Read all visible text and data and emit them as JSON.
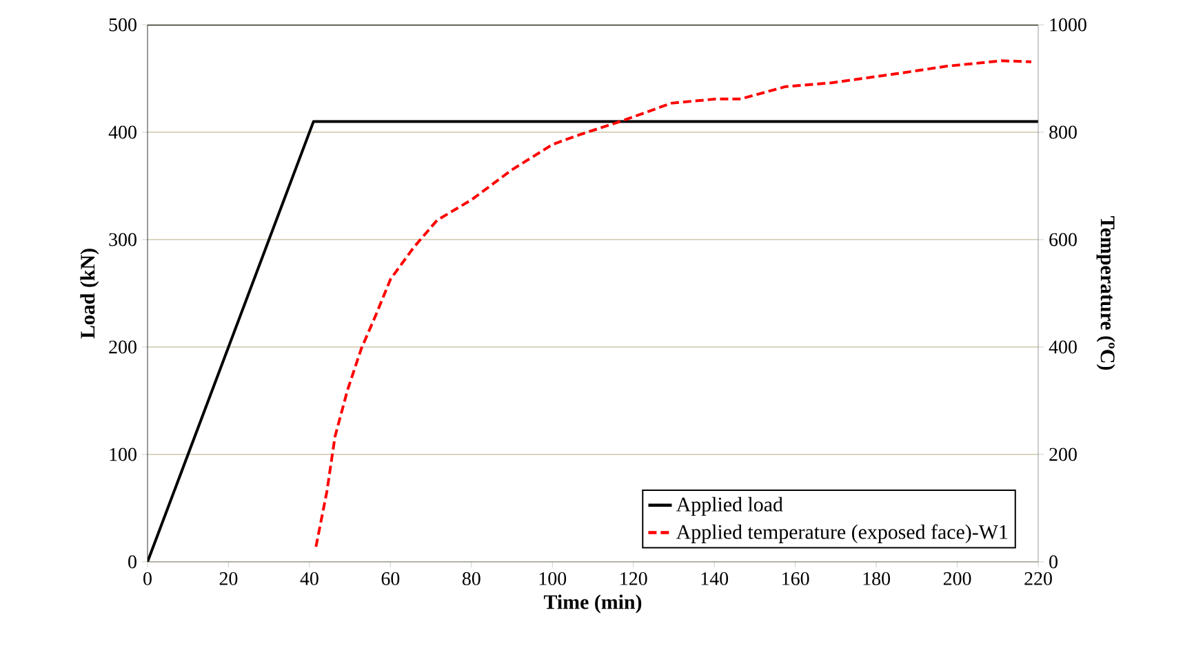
{
  "chart_data": {
    "type": "line",
    "xlabel": "Time (min)",
    "ylabel": "Load (kN)",
    "y2label": "Temperature (ºC)",
    "series": [
      {
        "name": "Applied load",
        "color": "#000000",
        "line_style": "solid",
        "x": [
          0,
          41,
          220
        ],
        "values": [
          0,
          410,
          410
        ]
      },
      {
        "name": "Applied temperature (exposed face)-W1",
        "color": "#ff0000",
        "line_style": "dashed",
        "axis": "y2",
        "x": [
          41.6,
          44.3,
          46.3,
          49.4,
          52.8,
          56.2,
          60,
          65.7,
          71.5,
          80,
          90,
          100,
          106.6,
          116.8,
          129.4,
          140.6,
          146.5,
          157.7,
          169,
          186,
          197.5,
          211,
          218.3
        ],
        "values": [
          28,
          131,
          233,
          320,
          397,
          456,
          526,
          585,
          636,
          674,
          730,
          777,
          795,
          820,
          854,
          862,
          862,
          885,
          892,
          910,
          923,
          933,
          931
        ]
      }
    ],
    "xlim": [
      0,
      220
    ],
    "xticks": [
      0,
      20,
      40,
      60,
      80,
      100,
      120,
      140,
      160,
      180,
      200,
      220
    ],
    "ylim": [
      0,
      500
    ],
    "yticks": [
      0,
      100,
      200,
      300,
      400,
      500
    ],
    "y2lim": [
      0,
      1000
    ],
    "y2ticks": [
      0,
      200,
      400,
      600,
      800,
      1000
    ],
    "grid": "y",
    "legend": "bottom right",
    "marker": "none"
  }
}
